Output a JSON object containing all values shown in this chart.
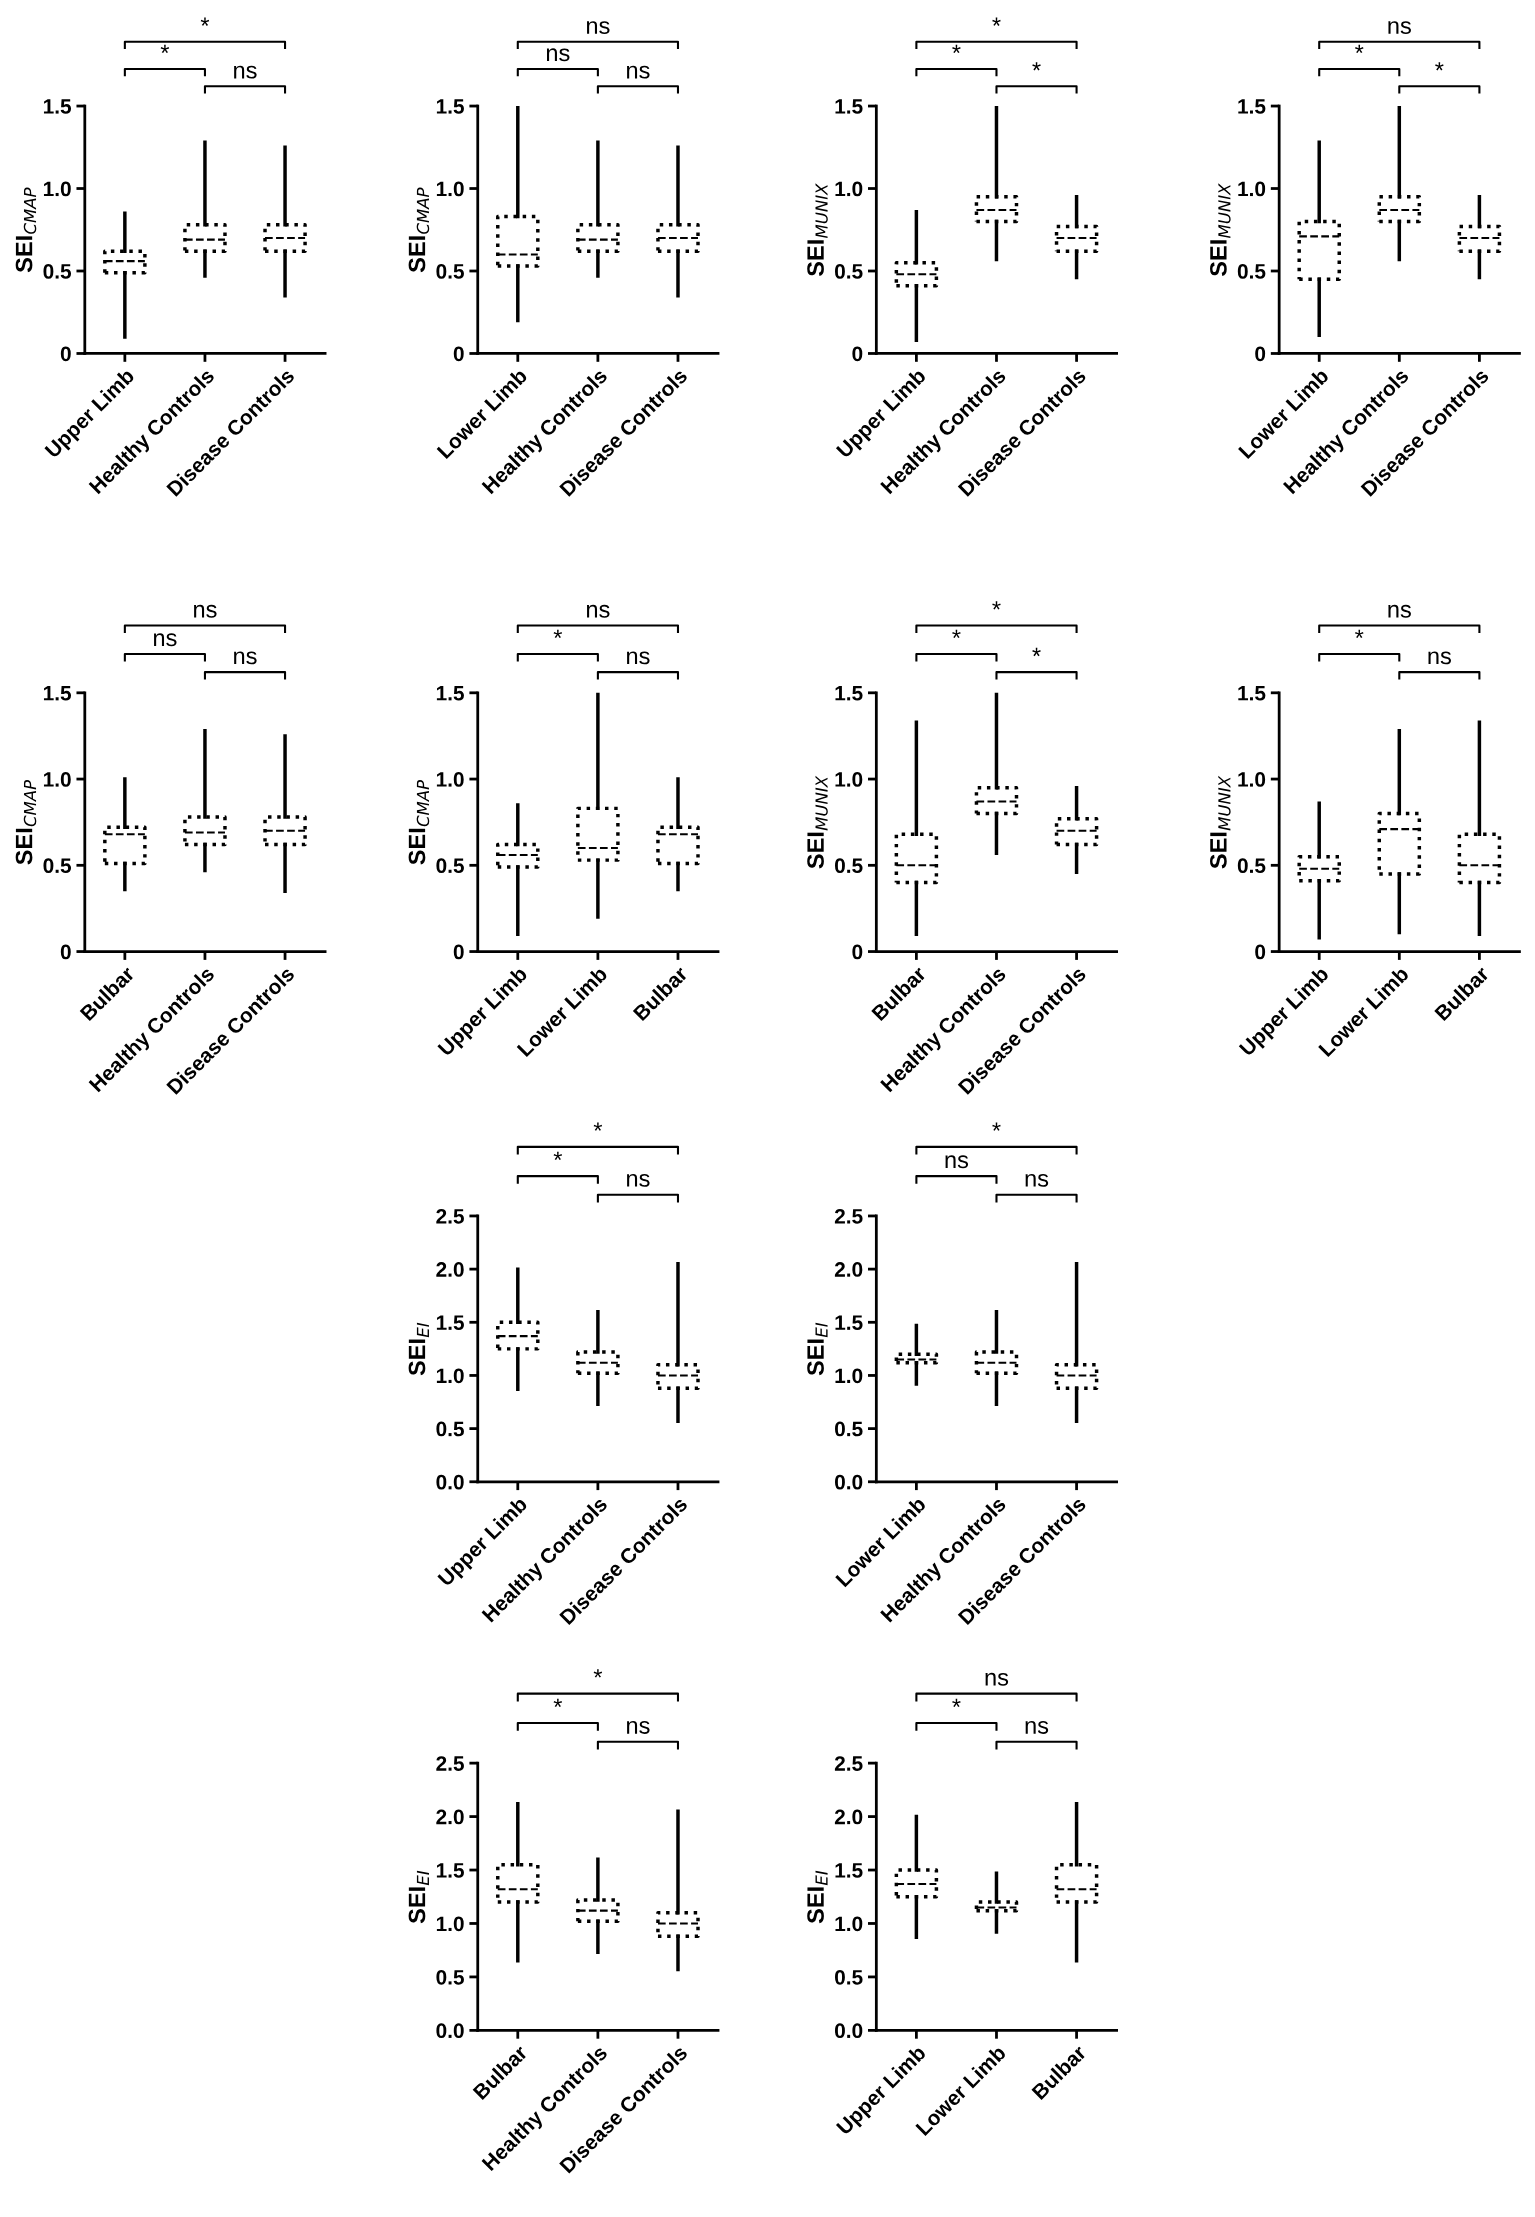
{
  "chart_data": [
    {
      "type": "box",
      "ylabel": "SEI$_{CMAP}$",
      "categories": [
        "Upper Limb",
        "Healthy Controls",
        "Disease Controls"
      ],
      "ylim": [
        0,
        1.5
      ],
      "yticks": [
        0,
        0.5,
        {
          "value": 1.0,
          "label": "1.0"
        },
        1.5
      ],
      "grid": false,
      "annotations": [
        "*",
        "*",
        "ns"
      ],
      "boxes": [
        {
          "low": 0.1,
          "q1": 0.49,
          "median": 0.56,
          "q3": 0.62,
          "high": 0.85
        },
        {
          "low": 0.47,
          "q1": 0.62,
          "median": 0.69,
          "q3": 0.78,
          "high": 1.28
        },
        {
          "low": 0.35,
          "q1": 0.62,
          "median": 0.7,
          "q3": 0.78,
          "high": 1.25
        }
      ]
    },
    {
      "type": "box",
      "ylabel": "SEI$_{CMAP}$",
      "categories": [
        "Lower Limb",
        "Healthy Controls",
        "Disease Controls"
      ],
      "ylim": [
        0,
        1.5
      ],
      "yticks": [
        0,
        0.5,
        {
          "value": 1.0,
          "label": "1.0"
        },
        1.5
      ],
      "grid": false,
      "annotations": [
        "ns",
        "ns",
        "ns"
      ],
      "boxes": [
        {
          "low": 0.2,
          "q1": 0.53,
          "median": 0.6,
          "q3": 0.83,
          "high": 1.5
        },
        {
          "low": 0.47,
          "q1": 0.62,
          "median": 0.69,
          "q3": 0.78,
          "high": 1.28
        },
        {
          "low": 0.35,
          "q1": 0.62,
          "median": 0.7,
          "q3": 0.78,
          "high": 1.25
        }
      ]
    },
    {
      "type": "box",
      "ylabel": "SEI$_{MUNIX}$",
      "categories": [
        "Upper Limb",
        "Healthy Controls",
        "Disease Controls"
      ],
      "ylim": [
        0,
        1.5
      ],
      "yticks": [
        0,
        0.5,
        {
          "value": 1.0,
          "label": "1.0"
        },
        1.5
      ],
      "grid": false,
      "annotations": [
        "*",
        "*",
        "*"
      ],
      "boxes": [
        {
          "low": 0.08,
          "q1": 0.41,
          "median": 0.48,
          "q3": 0.55,
          "high": 0.86
        },
        {
          "low": 0.57,
          "q1": 0.8,
          "median": 0.87,
          "q3": 0.95,
          "high": 1.5
        },
        {
          "low": 0.46,
          "q1": 0.62,
          "median": 0.7,
          "q3": 0.77,
          "high": 0.95
        }
      ]
    },
    {
      "type": "box",
      "ylabel": "SEI$_{MUNIX}$",
      "categories": [
        "Lower Limb",
        "Healthy Controls",
        "Disease Controls"
      ],
      "ylim": [
        0,
        1.5
      ],
      "yticks": [
        0,
        0.5,
        {
          "value": 1.0,
          "label": "1.0"
        },
        1.5
      ],
      "grid": false,
      "annotations": [
        "ns",
        "*",
        "*"
      ],
      "boxes": [
        {
          "low": 0.11,
          "q1": 0.45,
          "median": 0.71,
          "q3": 0.8,
          "high": 1.28
        },
        {
          "low": 0.57,
          "q1": 0.8,
          "median": 0.87,
          "q3": 0.95,
          "high": 1.5
        },
        {
          "low": 0.46,
          "q1": 0.62,
          "median": 0.7,
          "q3": 0.77,
          "high": 0.95
        }
      ]
    },
    {
      "type": "box",
      "ylabel": "SEI$_{CMAP}$",
      "categories": [
        "Bulbar",
        "Healthy Controls",
        "Disease Controls"
      ],
      "ylim": [
        0,
        1.5
      ],
      "yticks": [
        0,
        0.5,
        {
          "value": 1.0,
          "label": "1.0"
        },
        1.5
      ],
      "grid": false,
      "annotations": [
        "ns",
        "ns",
        "ns"
      ],
      "boxes": [
        {
          "low": 0.36,
          "q1": 0.51,
          "median": 0.68,
          "q3": 0.72,
          "high": 1.0
        },
        {
          "low": 0.47,
          "q1": 0.62,
          "median": 0.69,
          "q3": 0.78,
          "high": 1.28
        },
        {
          "low": 0.35,
          "q1": 0.62,
          "median": 0.7,
          "q3": 0.78,
          "high": 1.25
        }
      ]
    },
    {
      "type": "box",
      "ylabel": "SEI$_{CMAP}$",
      "categories": [
        "Upper Limb",
        "Lower Limb",
        "Bulbar"
      ],
      "ylim": [
        0,
        1.5
      ],
      "yticks": [
        0,
        0.5,
        {
          "value": 1.0,
          "label": "1.0"
        },
        1.5
      ],
      "grid": false,
      "annotations": [
        "ns",
        "*",
        "ns"
      ],
      "boxes": [
        {
          "low": 0.1,
          "q1": 0.49,
          "median": 0.56,
          "q3": 0.62,
          "high": 0.85
        },
        {
          "low": 0.2,
          "q1": 0.53,
          "median": 0.6,
          "q3": 0.83,
          "high": 1.5
        },
        {
          "low": 0.36,
          "q1": 0.51,
          "median": 0.68,
          "q3": 0.72,
          "high": 1.0
        }
      ]
    },
    {
      "type": "box",
      "ylabel": "SEI$_{MUNIX}$",
      "categories": [
        "Bulbar",
        "Healthy Controls",
        "Disease Controls"
      ],
      "ylim": [
        0,
        1.5
      ],
      "yticks": [
        0,
        0.5,
        {
          "value": 1.0,
          "label": "1.0"
        },
        1.5
      ],
      "grid": false,
      "annotations": [
        "*",
        "*",
        "*"
      ],
      "boxes": [
        {
          "low": 0.1,
          "q1": 0.4,
          "median": 0.5,
          "q3": 0.68,
          "high": 1.33
        },
        {
          "low": 0.57,
          "q1": 0.8,
          "median": 0.87,
          "q3": 0.95,
          "high": 1.5
        },
        {
          "low": 0.46,
          "q1": 0.62,
          "median": 0.7,
          "q3": 0.77,
          "high": 0.95
        }
      ]
    },
    {
      "type": "box",
      "ylabel": "SEI$_{MUNIX}$",
      "categories": [
        "Upper Limb",
        "Lower Limb",
        "Bulbar"
      ],
      "ylim": [
        0,
        1.5
      ],
      "yticks": [
        0,
        0.5,
        {
          "value": 1.0,
          "label": "1.0"
        },
        1.5
      ],
      "grid": false,
      "annotations": [
        "ns",
        "*",
        "ns"
      ],
      "boxes": [
        {
          "low": 0.08,
          "q1": 0.41,
          "median": 0.48,
          "q3": 0.55,
          "high": 0.86
        },
        {
          "low": 0.11,
          "q1": 0.45,
          "median": 0.71,
          "q3": 0.8,
          "high": 1.28
        },
        {
          "low": 0.1,
          "q1": 0.4,
          "median": 0.5,
          "q3": 0.68,
          "high": 1.33
        }
      ]
    },
    {
      "type": "box",
      "ylabel": "SEI$_{EI}$",
      "categories": [
        "Upper Limb",
        "Healthy Controls",
        "Disease Controls"
      ],
      "ylim": [
        0,
        2.5
      ],
      "yticks": [
        {
          "value": 0,
          "label": "0.0"
        },
        0.5,
        {
          "value": 1.0,
          "label": "1.0"
        },
        1.5,
        {
          "value": 2.0,
          "label": "2.0"
        },
        2.5
      ],
      "grid": false,
      "annotations": [
        "*",
        "*",
        "ns"
      ],
      "boxes": [
        {
          "low": 0.87,
          "q1": 1.25,
          "median": 1.37,
          "q3": 1.5,
          "high": 2.0
        },
        {
          "low": 0.73,
          "q1": 1.02,
          "median": 1.12,
          "q3": 1.22,
          "high": 1.6
        },
        {
          "low": 0.57,
          "q1": 0.88,
          "median": 1.0,
          "q3": 1.1,
          "high": 2.05
        }
      ]
    },
    {
      "type": "box",
      "ylabel": "SEI$_{EI}$",
      "categories": [
        "Lower Limb",
        "Healthy Controls",
        "Disease Controls"
      ],
      "ylim": [
        0,
        2.5
      ],
      "yticks": [
        {
          "value": 0,
          "label": "0.0"
        },
        0.5,
        {
          "value": 1.0,
          "label": "1.0"
        },
        1.5,
        {
          "value": 2.0,
          "label": "2.0"
        },
        2.5
      ],
      "grid": false,
      "annotations": [
        "*",
        "ns",
        "ns"
      ],
      "boxes": [
        {
          "low": 0.92,
          "q1": 1.12,
          "median": 1.15,
          "q3": 1.2,
          "high": 1.47
        },
        {
          "low": 0.73,
          "q1": 1.02,
          "median": 1.12,
          "q3": 1.22,
          "high": 1.6
        },
        {
          "low": 0.57,
          "q1": 0.88,
          "median": 1.0,
          "q3": 1.1,
          "high": 2.05
        }
      ]
    },
    {
      "type": "box",
      "ylabel": "SEI$_{EI}$",
      "categories": [
        "Bulbar",
        "Healthy Controls",
        "Disease Controls"
      ],
      "ylim": [
        0,
        2.5
      ],
      "yticks": [
        {
          "value": 0,
          "label": "0.0"
        },
        0.5,
        {
          "value": 1.0,
          "label": "1.0"
        },
        1.5,
        {
          "value": 2.0,
          "label": "2.0"
        },
        2.5
      ],
      "grid": false,
      "annotations": [
        "*",
        "*",
        "ns"
      ],
      "boxes": [
        {
          "low": 0.65,
          "q1": 1.2,
          "median": 1.32,
          "q3": 1.55,
          "high": 2.12
        },
        {
          "low": 0.73,
          "q1": 1.02,
          "median": 1.12,
          "q3": 1.22,
          "high": 1.6
        },
        {
          "low": 0.57,
          "q1": 0.88,
          "median": 1.0,
          "q3": 1.1,
          "high": 2.05
        }
      ]
    },
    {
      "type": "box",
      "ylabel": "SEI$_{EI}$",
      "categories": [
        "Upper Limb",
        "Lower Limb",
        "Bulbar"
      ],
      "ylim": [
        0,
        2.5
      ],
      "yticks": [
        {
          "value": 0,
          "label": "0.0"
        },
        0.5,
        {
          "value": 1.0,
          "label": "1.0"
        },
        1.5,
        {
          "value": 2.0,
          "label": "2.0"
        },
        2.5
      ],
      "grid": false,
      "annotations": [
        "ns",
        "*",
        "ns"
      ],
      "boxes": [
        {
          "low": 0.87,
          "q1": 1.25,
          "median": 1.37,
          "q3": 1.5,
          "high": 2.0
        },
        {
          "low": 0.92,
          "q1": 1.12,
          "median": 1.15,
          "q3": 1.2,
          "high": 1.47
        },
        {
          "low": 0.65,
          "q1": 1.2,
          "median": 1.32,
          "q3": 1.55,
          "high": 2.12
        }
      ]
    }
  ]
}
